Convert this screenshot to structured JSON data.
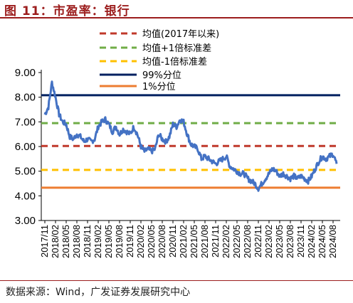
{
  "figure": {
    "title": "图 11：市盈率：银行",
    "source": "数据来源：Wind，广发证券发展研究中心"
  },
  "chart_data": {
    "type": "line",
    "title": "",
    "xlabel": "",
    "ylabel": "",
    "ylim": [
      3.0,
      9.0
    ],
    "yticks": [
      "9.00",
      "8.00",
      "7.00",
      "6.00",
      "5.00",
      "4.00",
      "3.00"
    ],
    "ytick_values": [
      9,
      8,
      7,
      6,
      5,
      4,
      3
    ],
    "xlim": [
      "2017-10",
      "2024-10"
    ],
    "xticks": [
      "2017/11",
      "2018/02",
      "2018/05",
      "2018/08",
      "2018/11",
      "2019/02",
      "2019/05",
      "2019/08",
      "2019/11",
      "2020/02",
      "2020/05",
      "2020/08",
      "2020/11",
      "2021/02",
      "2021/05",
      "2021/08",
      "2021/11",
      "2022/02",
      "2022/05",
      "2022/08",
      "2022/11",
      "2023/02",
      "2023/05",
      "2023/08",
      "2023/11",
      "2024/02",
      "2024/05",
      "2024/08"
    ],
    "grid": false,
    "legend_position": "top",
    "series": [
      {
        "name": "",
        "color": "#4472c4",
        "x": [
          "2017-11",
          "2017-12",
          "2018-01",
          "2018-02",
          "2018-03",
          "2018-04",
          "2018-05",
          "2018-06",
          "2018-07",
          "2018-08",
          "2018-09",
          "2018-10",
          "2018-11",
          "2018-12",
          "2019-01",
          "2019-02",
          "2019-03",
          "2019-04",
          "2019-05",
          "2019-06",
          "2019-07",
          "2019-08",
          "2019-09",
          "2019-10",
          "2019-11",
          "2019-12",
          "2020-01",
          "2020-02",
          "2020-03",
          "2020-04",
          "2020-05",
          "2020-06",
          "2020-07",
          "2020-08",
          "2020-09",
          "2020-10",
          "2020-11",
          "2020-12",
          "2021-01",
          "2021-02",
          "2021-03",
          "2021-04",
          "2021-05",
          "2021-06",
          "2021-07",
          "2021-08",
          "2021-09",
          "2021-10",
          "2021-11",
          "2021-12",
          "2022-01",
          "2022-02",
          "2022-03",
          "2022-04",
          "2022-05",
          "2022-06",
          "2022-07",
          "2022-08",
          "2022-09",
          "2022-10",
          "2022-11",
          "2022-12",
          "2023-01",
          "2023-02",
          "2023-03",
          "2023-04",
          "2023-05",
          "2023-06",
          "2023-07",
          "2023-08",
          "2023-09",
          "2023-10",
          "2023-11",
          "2023-12",
          "2024-01",
          "2024-02",
          "2024-03",
          "2024-04",
          "2024-05",
          "2024-06",
          "2024-07",
          "2024-08",
          "2024-09"
        ],
        "values": [
          7.3,
          7.6,
          8.6,
          8.0,
          7.3,
          7.0,
          6.9,
          6.4,
          6.3,
          6.5,
          6.4,
          6.2,
          6.3,
          6.2,
          6.3,
          6.8,
          7.0,
          7.1,
          6.9,
          6.6,
          6.8,
          6.5,
          6.7,
          6.6,
          6.5,
          6.8,
          6.5,
          6.0,
          5.8,
          5.9,
          5.8,
          5.9,
          6.5,
          6.3,
          6.2,
          6.4,
          6.9,
          6.8,
          7.1,
          7.0,
          6.5,
          6.1,
          6.0,
          5.9,
          5.5,
          5.6,
          5.5,
          5.4,
          5.3,
          5.4,
          5.5,
          5.6,
          5.2,
          5.1,
          5.0,
          4.9,
          4.9,
          4.7,
          4.6,
          4.5,
          4.3,
          4.5,
          4.7,
          4.9,
          5.1,
          5.0,
          4.8,
          4.9,
          4.8,
          4.7,
          4.8,
          4.7,
          4.8,
          4.7,
          4.6,
          4.8,
          5.1,
          5.4,
          5.6,
          5.5,
          5.6,
          5.7,
          5.3
        ]
      }
    ],
    "reference_lines": [
      {
        "name": "均值(2017年以来)",
        "value": 6.02,
        "color": "#c0392b",
        "dash": true
      },
      {
        "name": "均值+1倍标准差",
        "value": 6.95,
        "color": "#70ad47",
        "dash": true
      },
      {
        "name": "均值-1倍标准差",
        "value": 5.05,
        "color": "#ffc000",
        "dash": true
      },
      {
        "name": "99%分位",
        "value": 8.08,
        "color": "#002060",
        "dash": false
      },
      {
        "name": "1%分位",
        "value": 4.33,
        "color": "#ed7d31",
        "dash": false
      }
    ]
  }
}
